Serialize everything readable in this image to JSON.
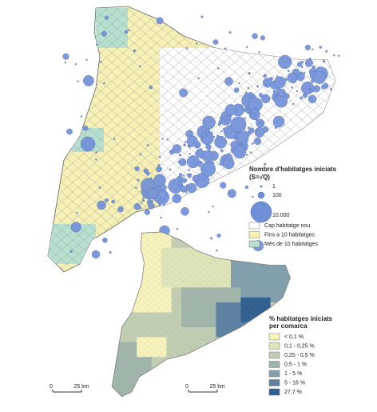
{
  "bubble_legend": {
    "title": "Nombre d'habitatges iniciats",
    "subtitle": "(S=√Q)",
    "sizes": [
      "1",
      "100",
      "10.000"
    ]
  },
  "category_legend": [
    {
      "label": "Cap habitatge nou",
      "color": "#ffffff"
    },
    {
      "label": "Fins a 10 habitatges",
      "color": "#f7f0b4"
    },
    {
      "label": "Més de 10 habitatges",
      "color": "#b7e0d0"
    }
  ],
  "comarca_legend": {
    "title": [
      "% habitatges iniciats",
      "per comarca"
    ],
    "classes": [
      {
        "label": "< 0,1 %",
        "color": "#f8f3bb"
      },
      {
        "label": "0,1 - 0,25 %",
        "color": "#dfe5b8"
      },
      {
        "label": "0,25 - 0,5 %",
        "color": "#c1ceb2"
      },
      {
        "label": "0,5 - 1 %",
        "color": "#a1b6aa"
      },
      {
        "label": "1 - 5 %",
        "color": "#819fac"
      },
      {
        "label": "5 - 16 %",
        "color": "#5b80a1"
      },
      {
        "label": "27,7 %",
        "color": "#2f5f8f"
      }
    ]
  },
  "scale_bars": [
    {
      "start": "0",
      "end": "25 km"
    },
    {
      "start": "0",
      "end": "25 km"
    }
  ]
}
